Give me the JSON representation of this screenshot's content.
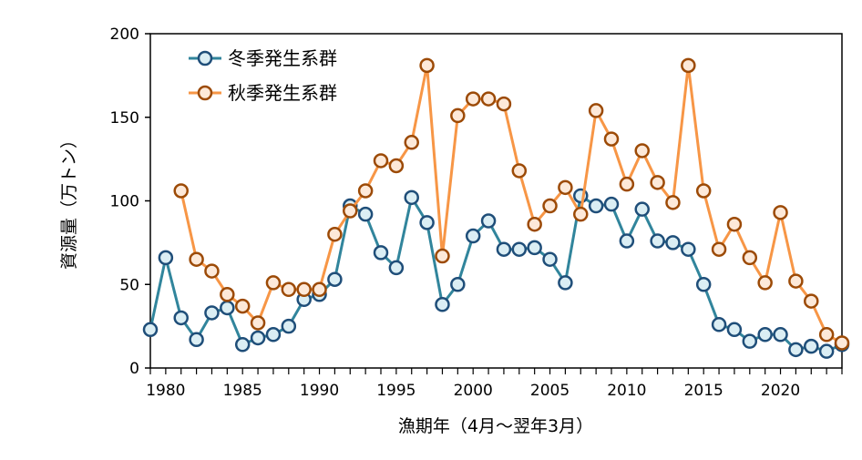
{
  "chart_data": {
    "type": "line",
    "title": "",
    "xlabel": "漁期年（4月～翌年3月）",
    "ylabel": "資源量（万トン）",
    "xlim": [
      1979,
      2024
    ],
    "ylim": [
      0,
      200
    ],
    "x_ticks": [
      1980,
      1985,
      1990,
      1995,
      2000,
      2005,
      2010,
      2015,
      2020
    ],
    "y_ticks": [
      0,
      50,
      100,
      150,
      200
    ],
    "grid": false,
    "legend_position": "top-left",
    "series": [
      {
        "name": "冬季発生系群",
        "line_color": "#31859c",
        "marker_stroke": "#1f4e79",
        "marker_fill": "#dbeef4",
        "x": [
          1979,
          1980,
          1981,
          1982,
          1983,
          1984,
          1985,
          1986,
          1987,
          1988,
          1989,
          1990,
          1991,
          1992,
          1993,
          1994,
          1995,
          1996,
          1997,
          1998,
          1999,
          2000,
          2001,
          2002,
          2003,
          2004,
          2005,
          2006,
          2007,
          2008,
          2009,
          2010,
          2011,
          2012,
          2013,
          2014,
          2015,
          2016,
          2017,
          2018,
          2019,
          2020,
          2021,
          2022,
          2023,
          2024
        ],
        "values": [
          23,
          66,
          30,
          17,
          33,
          36,
          14,
          18,
          20,
          25,
          41,
          44,
          53,
          97,
          92,
          69,
          60,
          102,
          87,
          38,
          50,
          79,
          88,
          71,
          71,
          72,
          65,
          51,
          103,
          97,
          98,
          76,
          95,
          76,
          75,
          71,
          50,
          26,
          23,
          16,
          20,
          20,
          11,
          13,
          10,
          14
        ]
      },
      {
        "name": "秋季発生系群",
        "line_color": "#f79646",
        "marker_stroke": "#9c4a06",
        "marker_fill": "#fde9d9",
        "x": [
          1981,
          1982,
          1983,
          1984,
          1985,
          1986,
          1987,
          1988,
          1989,
          1990,
          1991,
          1992,
          1993,
          1994,
          1995,
          1996,
          1997,
          1998,
          1999,
          2000,
          2001,
          2002,
          2003,
          2004,
          2005,
          2006,
          2007,
          2008,
          2009,
          2010,
          2011,
          2012,
          2013,
          2014,
          2015,
          2016,
          2017,
          2018,
          2019,
          2020,
          2021,
          2022,
          2023,
          2024
        ],
        "values": [
          106,
          65,
          58,
          44,
          37,
          27,
          51,
          47,
          47,
          47,
          80,
          94,
          106,
          124,
          121,
          135,
          181,
          67,
          151,
          161,
          161,
          158,
          118,
          86,
          97,
          108,
          92,
          154,
          137,
          110,
          130,
          111,
          99,
          181,
          106,
          71,
          86,
          66,
          51,
          93,
          52,
          40,
          20,
          15
        ]
      }
    ]
  }
}
